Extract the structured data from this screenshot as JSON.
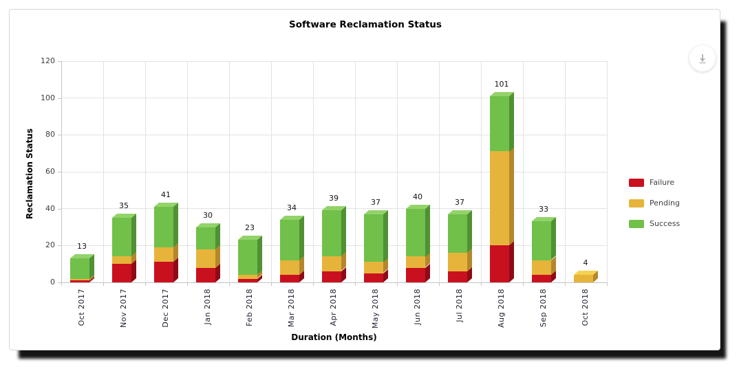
{
  "chart_data": {
    "type": "bar",
    "stacked": true,
    "title": "Software Reclamation Status",
    "xlabel": "Duration (Months)",
    "ylabel": "Reclamation Status",
    "ylim": [
      0,
      120
    ],
    "yticks": [
      0,
      20,
      40,
      60,
      80,
      100,
      120
    ],
    "grid": true,
    "legend_position": "right",
    "categories": [
      "Oct 2017",
      "Nov 2017",
      "Dec 2017",
      "Jan 2018",
      "Feb 2018",
      "Mar 2018",
      "Apr 2018",
      "May 2018",
      "Jun 2018",
      "Jul 2018",
      "Aug 2018",
      "Sep 2018",
      "Oct 2018"
    ],
    "series": [
      {
        "name": "Failure",
        "color": "#c9101f",
        "side_color": "#8e0b16",
        "top_color": "#e04a55",
        "values": [
          1,
          10,
          11,
          8,
          2,
          4,
          6,
          5,
          8,
          6,
          20,
          4,
          0
        ]
      },
      {
        "name": "Pending",
        "color": "#e7b43b",
        "side_color": "#b5872b",
        "top_color": "#f3d34f",
        "values": [
          1,
          4,
          8,
          10,
          2,
          8,
          8,
          6,
          6,
          10,
          51,
          8,
          4
        ]
      },
      {
        "name": "Success",
        "color": "#70c04a",
        "side_color": "#509134",
        "top_color": "#93d36a",
        "values": [
          11,
          21,
          22,
          12,
          19,
          22,
          25,
          26,
          26,
          21,
          30,
          21,
          0
        ]
      }
    ],
    "totals": [
      13,
      35,
      41,
      30,
      23,
      34,
      39,
      37,
      40,
      37,
      101,
      33,
      4
    ]
  },
  "legend": {
    "items": [
      {
        "label": "Failure",
        "color": "#c9101f"
      },
      {
        "label": "Pending",
        "color": "#e7b43b"
      },
      {
        "label": "Success",
        "color": "#70c04a"
      }
    ]
  },
  "icons": {
    "download": "⤓"
  }
}
